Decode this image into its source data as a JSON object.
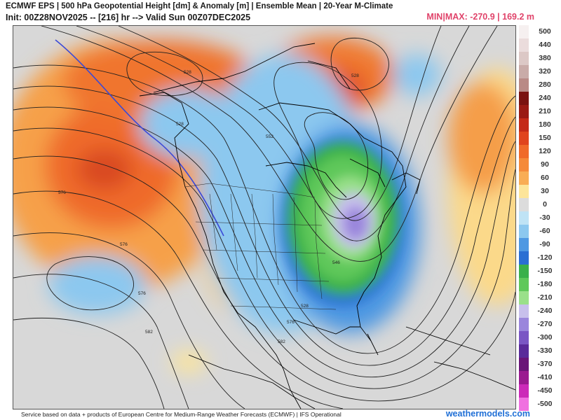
{
  "header": {
    "title_line1": "ECMWF EPS | 500 hPa Geopotential Height [dm] & Anomaly [m] | Ensemble Mean | 20-Year M-Climate",
    "title_line2": "Init: 00Z28NOV2025 -- [216] hr --> Valid Sun 00Z07DEC2025",
    "minmax": "MIN|MAX: -270.9 | 169.2 m"
  },
  "legend": {
    "entries": [
      {
        "label": "500",
        "color": "#f6f0f0"
      },
      {
        "label": "440",
        "color": "#ebdcdc"
      },
      {
        "label": "380",
        "color": "#dcc8c6"
      },
      {
        "label": "320",
        "color": "#c9aba8"
      },
      {
        "label": "280",
        "color": "#b98a86"
      },
      {
        "label": "240",
        "color": "#7a1210"
      },
      {
        "label": "210",
        "color": "#9a1a14"
      },
      {
        "label": "180",
        "color": "#c42a18"
      },
      {
        "label": "150",
        "color": "#e0441e"
      },
      {
        "label": "120",
        "color": "#f06a2a"
      },
      {
        "label": "90",
        "color": "#f58a3a"
      },
      {
        "label": "60",
        "color": "#f9ad55"
      },
      {
        "label": "30",
        "color": "#fde59a"
      },
      {
        "label": "0",
        "color": "#dcdcdc"
      },
      {
        "label": "-30",
        "color": "#bfe3f5"
      },
      {
        "label": "-60",
        "color": "#8cc8ef"
      },
      {
        "label": "-90",
        "color": "#4e98e2"
      },
      {
        "label": "-120",
        "color": "#2a6fd3"
      },
      {
        "label": "-150",
        "color": "#3ab04a"
      },
      {
        "label": "-180",
        "color": "#5fc85a"
      },
      {
        "label": "-210",
        "color": "#9ae08a"
      },
      {
        "label": "-240",
        "color": "#c8c0ec"
      },
      {
        "label": "-270",
        "color": "#9a86dc"
      },
      {
        "label": "-300",
        "color": "#7a56c4"
      },
      {
        "label": "-330",
        "color": "#5a2a9a"
      },
      {
        "label": "-370",
        "color": "#6a1478"
      },
      {
        "label": "-410",
        "color": "#9a1a90"
      },
      {
        "label": "-450",
        "color": "#cc2ab8"
      },
      {
        "label": "-500",
        "color": "#f070e0"
      }
    ]
  },
  "map": {
    "contour_labels": [
      "528",
      "528",
      "528",
      "552",
      "576",
      "576",
      "576",
      "582",
      "576",
      "582",
      "528",
      "546"
    ]
  },
  "footer": {
    "credit": "Service based on data + products of European Centre for Medium-Range Weather Forecasts (ECMWF) | IFS Operational",
    "brand": "weathermodels.com"
  }
}
